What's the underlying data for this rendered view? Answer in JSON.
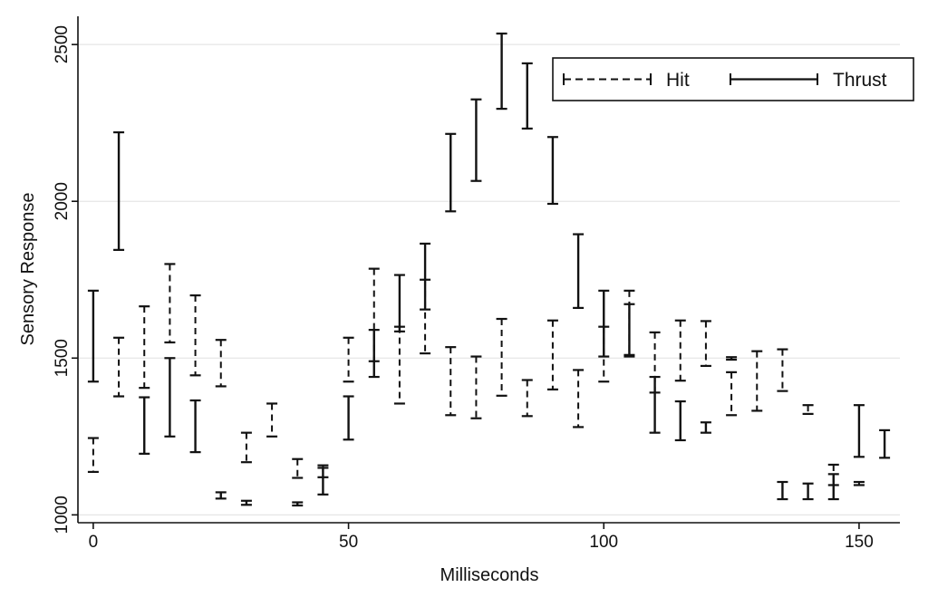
{
  "chart_data": {
    "type": "errorbar",
    "title": "",
    "xlabel": "Milliseconds",
    "ylabel": "Sensory Response",
    "xlim": [
      -3,
      158
    ],
    "ylim": [
      975,
      2590
    ],
    "xticks": [
      0,
      50,
      100,
      150
    ],
    "yticks": [
      1000,
      1500,
      2000,
      2500
    ],
    "grid": "horizontal",
    "legend": "top-right",
    "series": [
      {
        "name": "Hit",
        "style": "dashed",
        "color": "#111111",
        "intervals": [
          {
            "x": 0,
            "low": 1137,
            "high": 1245
          },
          {
            "x": 5,
            "low": 1378,
            "high": 1565
          },
          {
            "x": 10,
            "low": 1405,
            "high": 1665
          },
          {
            "x": 15,
            "low": 1550,
            "high": 1800
          },
          {
            "x": 20,
            "low": 1445,
            "high": 1700
          },
          {
            "x": 25,
            "low": 1410,
            "high": 1558
          },
          {
            "x": 30,
            "low": 1168,
            "high": 1262
          },
          {
            "x": 35,
            "low": 1250,
            "high": 1355
          },
          {
            "x": 40,
            "low": 1118,
            "high": 1178
          },
          {
            "x": 45,
            "low": 1120,
            "high": 1158
          },
          {
            "x": 50,
            "low": 1425,
            "high": 1565
          },
          {
            "x": 55,
            "low": 1490,
            "high": 1785
          },
          {
            "x": 60,
            "low": 1355,
            "high": 1600
          },
          {
            "x": 65,
            "low": 1515,
            "high": 1750
          },
          {
            "x": 70,
            "low": 1318,
            "high": 1535
          },
          {
            "x": 75,
            "low": 1308,
            "high": 1505
          },
          {
            "x": 80,
            "low": 1380,
            "high": 1625
          },
          {
            "x": 85,
            "low": 1315,
            "high": 1430
          },
          {
            "x": 90,
            "low": 1400,
            "high": 1620
          },
          {
            "x": 95,
            "low": 1280,
            "high": 1462
          },
          {
            "x": 100,
            "low": 1425,
            "high": 1600
          },
          {
            "x": 105,
            "low": 1505,
            "high": 1715
          },
          {
            "x": 110,
            "low": 1390,
            "high": 1582
          },
          {
            "x": 115,
            "low": 1428,
            "high": 1620
          },
          {
            "x": 120,
            "low": 1475,
            "high": 1618
          },
          {
            "x": 125,
            "low": 1318,
            "high": 1455
          },
          {
            "x": 130,
            "low": 1332,
            "high": 1522
          },
          {
            "x": 135,
            "low": 1395,
            "high": 1528
          },
          {
            "x": 140,
            "low": 1322,
            "high": 1350
          },
          {
            "x": 145,
            "low": 1095,
            "high": 1160
          },
          {
            "x": 150,
            "low": 1095,
            "high": 1105
          }
        ]
      },
      {
        "name": "Thrust",
        "style": "solid",
        "color": "#111111",
        "intervals": [
          {
            "x": 0,
            "low": 1425,
            "high": 1715
          },
          {
            "x": 5,
            "low": 1845,
            "high": 2220
          },
          {
            "x": 10,
            "low": 1195,
            "high": 1375
          },
          {
            "x": 15,
            "low": 1250,
            "high": 1500
          },
          {
            "x": 20,
            "low": 1200,
            "high": 1365
          },
          {
            "x": 25,
            "low": 1052,
            "high": 1072
          },
          {
            "x": 30,
            "low": 1032,
            "high": 1045
          },
          {
            "x": 40,
            "low": 1030,
            "high": 1040
          },
          {
            "x": 45,
            "low": 1065,
            "high": 1150
          },
          {
            "x": 50,
            "low": 1240,
            "high": 1378
          },
          {
            "x": 55,
            "low": 1440,
            "high": 1590
          },
          {
            "x": 60,
            "low": 1585,
            "high": 1765
          },
          {
            "x": 65,
            "low": 1655,
            "high": 1865
          },
          {
            "x": 70,
            "low": 1968,
            "high": 2215
          },
          {
            "x": 75,
            "low": 2065,
            "high": 2325
          },
          {
            "x": 80,
            "low": 2295,
            "high": 2535
          },
          {
            "x": 85,
            "low": 2232,
            "high": 2440
          },
          {
            "x": 90,
            "low": 1992,
            "high": 2205
          },
          {
            "x": 95,
            "low": 1660,
            "high": 1895
          },
          {
            "x": 100,
            "low": 1505,
            "high": 1715
          },
          {
            "x": 105,
            "low": 1510,
            "high": 1672
          },
          {
            "x": 110,
            "low": 1262,
            "high": 1440
          },
          {
            "x": 115,
            "low": 1238,
            "high": 1362
          },
          {
            "x": 120,
            "low": 1262,
            "high": 1295
          },
          {
            "x": 125,
            "low": 1495,
            "high": 1503
          },
          {
            "x": 135,
            "low": 1050,
            "high": 1105
          },
          {
            "x": 140,
            "low": 1050,
            "high": 1100
          },
          {
            "x": 145,
            "low": 1050,
            "high": 1130
          },
          {
            "x": 150,
            "low": 1185,
            "high": 1350
          },
          {
            "x": 155,
            "low": 1182,
            "high": 1270
          }
        ]
      }
    ]
  }
}
